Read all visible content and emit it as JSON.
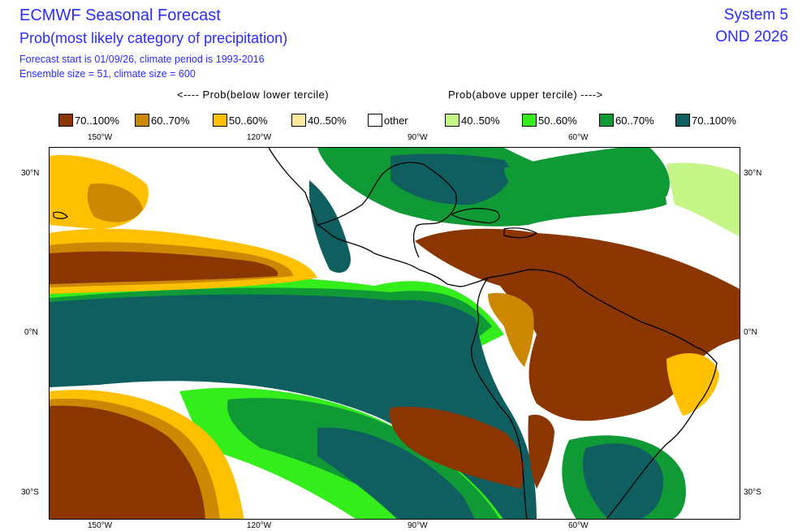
{
  "header": {
    "title": "ECMWF Seasonal Forecast",
    "subtitle": "Prob(most likely category of precipitation)",
    "forecast_info": "Forecast start is 01/09/26, climate period is 1993-2016",
    "ensemble_info": "Ensemble size = 51, climate size = 600",
    "system": "System 5",
    "period": "OND 2026"
  },
  "category_headers": {
    "below": "<---- Prob(below lower tercile)",
    "above": "Prob(above upper tercile) ---->"
  },
  "legend": [
    {
      "label": "70..100%",
      "color": "#8b3500"
    },
    {
      "label": "60..70%",
      "color": "#cc8800"
    },
    {
      "label": "50..60%",
      "color": "#ffc000"
    },
    {
      "label": "40..50%",
      "color": "#ffe9a0"
    },
    {
      "label": "other",
      "color": "#ffffff"
    },
    {
      "label": "40..50%",
      "color": "#c5f586"
    },
    {
      "label": "50..60%",
      "color": "#33ee1a"
    },
    {
      "label": "60..70%",
      "color": "#109a36"
    },
    {
      "label": "70..100%",
      "color": "#0f5f60"
    }
  ],
  "axes": {
    "lon_ticks": [
      "150°W",
      "120°W",
      "90°W",
      "60°W"
    ],
    "lat_ticks_left": [
      "30°N",
      "0°N",
      "30°S"
    ],
    "lat_ticks_right": [
      "30°N",
      "0°N",
      "30°S"
    ]
  }
}
